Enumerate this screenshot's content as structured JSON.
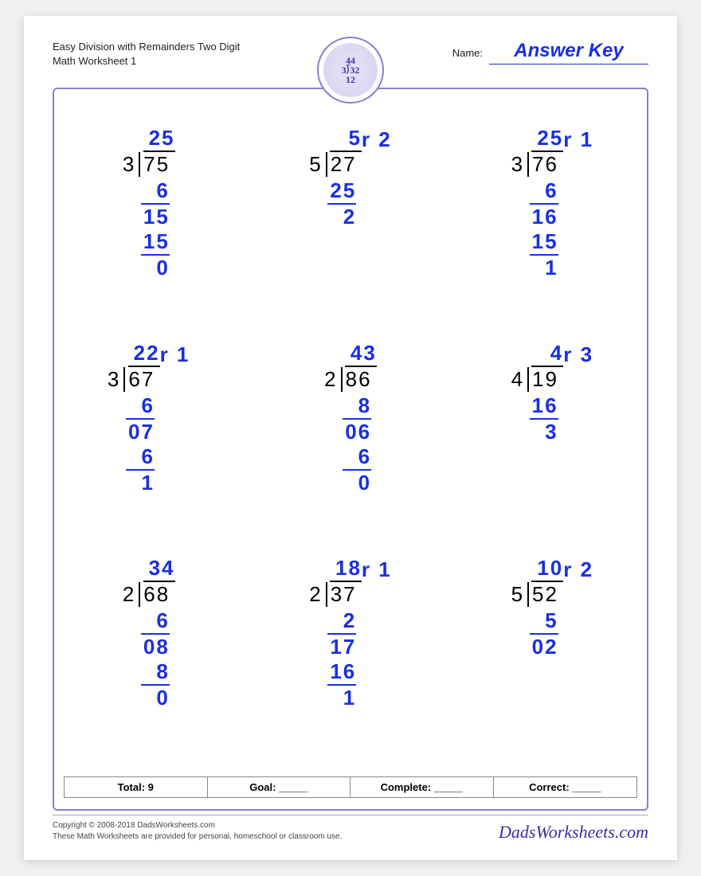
{
  "colors": {
    "answer": "#1a2fe0",
    "frame": "#8a7ecf",
    "text": "#222222",
    "page_bg": "#ffffff"
  },
  "typography": {
    "body_fontsize_pt": 13,
    "problem_fontsize_pt": 26,
    "answer_key_fontsize_pt": 24
  },
  "header": {
    "title_line1": "Easy Division with Remainders Two Digit",
    "title_line2": "Math Worksheet 1",
    "name_label": "Name:",
    "name_value": "Answer Key",
    "badge_text": "44\n3⟌32\n12\n12"
  },
  "problems": [
    {
      "divisor": "3",
      "dividend": "75",
      "quotient": "25",
      "rem": "",
      "work": [
        [
          "6",
          true
        ],
        [
          "15",
          false
        ],
        [
          "15",
          true
        ],
        [
          "0",
          false
        ]
      ]
    },
    {
      "divisor": "5",
      "dividend": "27",
      "quotient": "5",
      "rem": "2",
      "work": [
        [
          "25",
          true
        ],
        [
          "2",
          false
        ]
      ]
    },
    {
      "divisor": "3",
      "dividend": "76",
      "quotient": "25",
      "rem": "1",
      "work": [
        [
          "6",
          true
        ],
        [
          "16",
          false
        ],
        [
          "15",
          true
        ],
        [
          "1",
          false
        ]
      ]
    },
    {
      "divisor": "3",
      "dividend": "67",
      "quotient": "22",
      "rem": "1",
      "work": [
        [
          "6",
          true
        ],
        [
          "07",
          false
        ],
        [
          "6",
          true
        ],
        [
          "1",
          false
        ]
      ]
    },
    {
      "divisor": "2",
      "dividend": "86",
      "quotient": "43",
      "rem": "",
      "work": [
        [
          "8",
          true
        ],
        [
          "06",
          false
        ],
        [
          "6",
          true
        ],
        [
          "0",
          false
        ]
      ]
    },
    {
      "divisor": "4",
      "dividend": "19",
      "quotient": "4",
      "rem": "3",
      "work": [
        [
          "16",
          true
        ],
        [
          "3",
          false
        ]
      ]
    },
    {
      "divisor": "2",
      "dividend": "68",
      "quotient": "34",
      "rem": "",
      "work": [
        [
          "6",
          true
        ],
        [
          "08",
          false
        ],
        [
          "8",
          true
        ],
        [
          "0",
          false
        ]
      ]
    },
    {
      "divisor": "2",
      "dividend": "37",
      "quotient": "18",
      "rem": "1",
      "work": [
        [
          "2",
          true
        ],
        [
          "17",
          false
        ],
        [
          "16",
          true
        ],
        [
          "1",
          false
        ]
      ]
    },
    {
      "divisor": "5",
      "dividend": "52",
      "quotient": "10",
      "rem": "2",
      "work": [
        [
          "5",
          true
        ],
        [
          "02",
          false
        ]
      ]
    }
  ],
  "stats": {
    "total_label": "Total: 9",
    "goal_label": "Goal: _____",
    "complete_label": "Complete: _____",
    "correct_label": "Correct: _____"
  },
  "footer": {
    "copyright": "Copyright © 2008-2018 DadsWorksheets.com",
    "note": "These Math Worksheets are provided for personal, homeschool or classroom use.",
    "logo": "DadsWorksheets.com"
  }
}
